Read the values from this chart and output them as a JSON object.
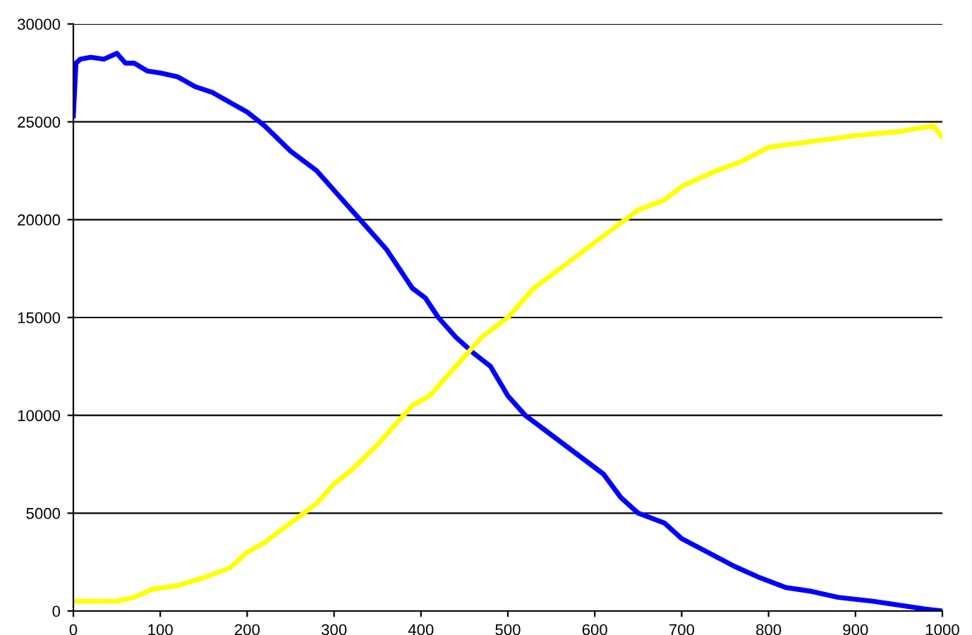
{
  "chart_data": {
    "type": "line",
    "xlim": [
      0,
      1000
    ],
    "ylim": [
      0,
      30000
    ],
    "xticks": [
      0,
      100,
      200,
      300,
      400,
      500,
      600,
      700,
      800,
      900,
      1000
    ],
    "yticks": [
      0,
      5000,
      10000,
      15000,
      20000,
      25000,
      30000
    ],
    "grid": "y",
    "legend": false,
    "marker": "none",
    "line_style": "solid",
    "series": [
      {
        "color": "#0000ff",
        "x": [
          0,
          3,
          8,
          20,
          35,
          50,
          60,
          70,
          85,
          100,
          120,
          140,
          160,
          180,
          200,
          220,
          250,
          280,
          300,
          330,
          360,
          390,
          405,
          420,
          440,
          460,
          480,
          500,
          520,
          550,
          580,
          610,
          630,
          650,
          680,
          700,
          730,
          760,
          790,
          820,
          850,
          880,
          920,
          950,
          980,
          1000
        ],
        "values": [
          25300,
          28000,
          28200,
          28300,
          28200,
          28500,
          28000,
          28000,
          27600,
          27500,
          27300,
          26800,
          26500,
          26000,
          25500,
          24800,
          23500,
          22500,
          21500,
          20000,
          18500,
          16500,
          16000,
          15000,
          14000,
          13200,
          12500,
          11000,
          10000,
          9000,
          8000,
          7000,
          5800,
          5000,
          4500,
          3700,
          3000,
          2300,
          1700,
          1200,
          1000,
          700,
          500,
          300,
          100,
          0
        ]
      },
      {
        "color": "#ffff00",
        "x": [
          0,
          20,
          50,
          70,
          90,
          120,
          150,
          180,
          200,
          220,
          250,
          280,
          300,
          320,
          350,
          370,
          390,
          410,
          430,
          450,
          470,
          500,
          530,
          560,
          590,
          620,
          650,
          680,
          700,
          740,
          770,
          800,
          850,
          900,
          950,
          990,
          1000
        ],
        "values": [
          500,
          500,
          500,
          700,
          1100,
          1300,
          1700,
          2200,
          3000,
          3500,
          4500,
          5500,
          6500,
          7200,
          8500,
          9500,
          10500,
          11000,
          12000,
          13000,
          14000,
          15000,
          16500,
          17500,
          18500,
          19500,
          20500,
          21000,
          21700,
          22500,
          23000,
          23700,
          24000,
          24300,
          24500,
          24800,
          24200
        ]
      }
    ]
  }
}
